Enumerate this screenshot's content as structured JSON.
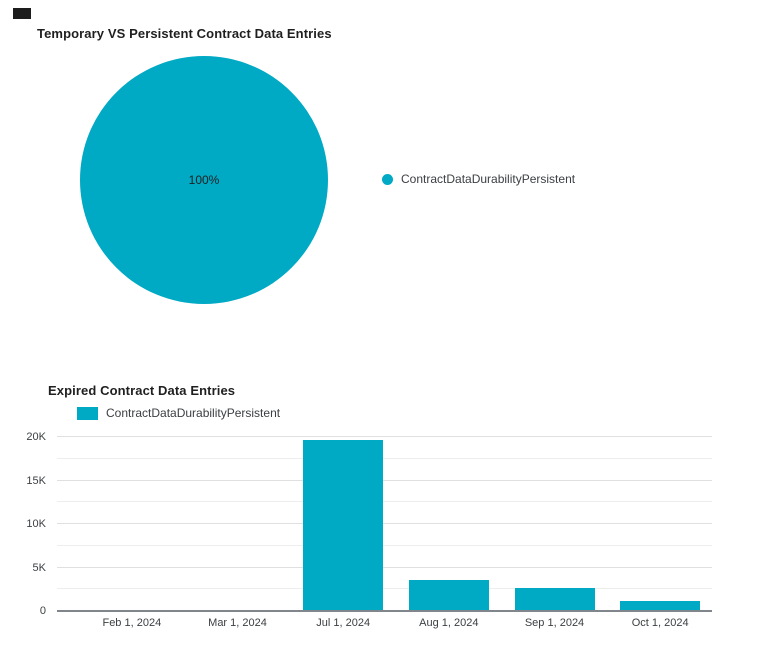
{
  "accent_color": "#00A9C4",
  "chart_data": [
    {
      "type": "pie",
      "title": "Temporary VS Persistent Contract Data Entries",
      "labels": [
        "ContractDataDurabilityPersistent"
      ],
      "values": [
        100
      ],
      "unit": "percent",
      "data_labels": [
        "100%"
      ],
      "colors": [
        "#00A9C4"
      ],
      "legend_position": "right"
    },
    {
      "type": "bar",
      "title": "Expired Contract Data Entries",
      "categories": [
        "Feb 1, 2024",
        "Mar 1, 2024",
        "Jul 1, 2024",
        "Aug 1, 2024",
        "Sep 1, 2024",
        "Oct 1, 2024"
      ],
      "series": [
        {
          "name": "ContractDataDurabilityPersistent",
          "color": "#00A9C4",
          "values": [
            60,
            40,
            19600,
            3600,
            2600,
            1100
          ]
        }
      ],
      "xlabel": "",
      "ylabel": "",
      "ylim": [
        0,
        20000
      ],
      "yticks": [
        {
          "label": "20K",
          "value": 20000
        },
        {
          "label": "15K",
          "value": 15000
        },
        {
          "label": "10K",
          "value": 10000
        },
        {
          "label": "5K",
          "value": 5000
        },
        {
          "label": "0",
          "value": 0
        }
      ],
      "minor_gridline_step": 2500,
      "grid": true,
      "legend_position": "top-left"
    }
  ]
}
